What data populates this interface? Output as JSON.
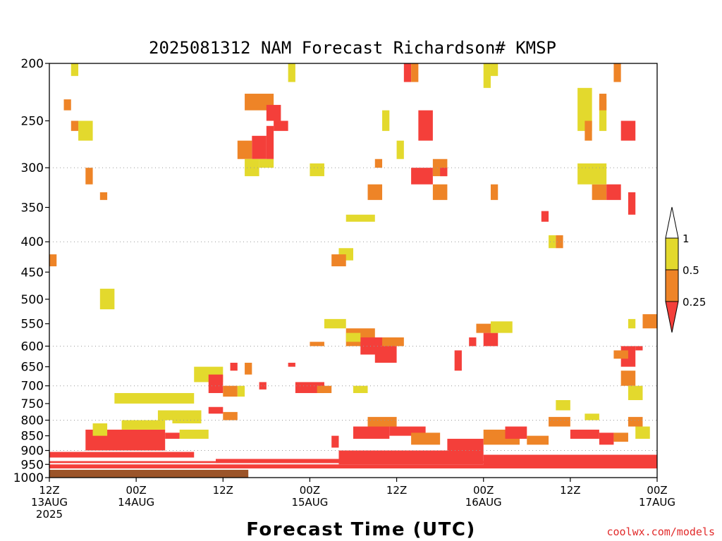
{
  "chart_data": {
    "type": "heatmap",
    "title": "2025081312 NAM Forecast Richardson# KMSP",
    "xlabel": "Forecast Time (UTC)",
    "ylabel": "",
    "y_scale": "log-pressure",
    "ylim": [
      1000,
      200
    ],
    "y_ticks": [
      200,
      250,
      300,
      350,
      400,
      450,
      500,
      550,
      600,
      650,
      700,
      750,
      800,
      850,
      900,
      950,
      1000
    ],
    "y_grid": [
      300,
      400,
      600,
      700,
      800,
      900,
      1000
    ],
    "xlim": [
      "2025-08-13T12:00Z",
      "2025-08-17T00:00Z"
    ],
    "x_ticks": [
      {
        "time": "2025-08-13T12:00Z",
        "lines": [
          "12Z",
          "13AUG",
          "2025"
        ]
      },
      {
        "time": "2025-08-14T00:00Z",
        "lines": [
          "00Z",
          "14AUG"
        ]
      },
      {
        "time": "2025-08-14T12:00Z",
        "lines": [
          "12Z"
        ]
      },
      {
        "time": "2025-08-15T00:00Z",
        "lines": [
          "00Z",
          "15AUG"
        ]
      },
      {
        "time": "2025-08-15T12:00Z",
        "lines": [
          "12Z"
        ]
      },
      {
        "time": "2025-08-16T00:00Z",
        "lines": [
          "00Z",
          "16AUG"
        ]
      },
      {
        "time": "2025-08-16T12:00Z",
        "lines": [
          "12Z"
        ]
      },
      {
        "time": "2025-08-17T00:00Z",
        "lines": [
          "00Z",
          "17AUG"
        ]
      }
    ],
    "legend": {
      "placement": "right",
      "levels": [
        {
          "label": "1",
          "color": "#ffffff"
        },
        {
          "label": "0.5",
          "color": "#e3d92d"
        },
        {
          "label": "0.25",
          "color": "#ee8427"
        },
        {
          "label": "",
          "color": "#f43f3a"
        }
      ]
    },
    "category_colors": {
      "lt025": "#f43f3a",
      "r025_05": "#ee8427",
      "r05_1": "#e3d92d",
      "ground": "#9b5429"
    },
    "patches": [
      {
        "t": [
          0,
          27.5
        ],
        "p": [
          1000,
          970
        ],
        "cat": "ground"
      },
      {
        "t": [
          0,
          84
        ],
        "p": [
          965,
          950
        ],
        "cat": "lt025"
      },
      {
        "t": [
          0,
          84
        ],
        "p": [
          945,
          938
        ],
        "cat": "lt025"
      },
      {
        "t": [
          23,
          40
        ],
        "p": [
          945,
          930
        ],
        "cat": "lt025"
      },
      {
        "t": [
          40,
          60
        ],
        "p": [
          950,
          900
        ],
        "cat": "lt025"
      },
      {
        "t": [
          60,
          84
        ],
        "p": [
          955,
          915
        ],
        "cat": "lt025"
      },
      {
        "t": [
          0,
          20
        ],
        "p": [
          925,
          905
        ],
        "cat": "lt025"
      },
      {
        "t": [
          5,
          16
        ],
        "p": [
          900,
          830
        ],
        "cat": "lt025"
      },
      {
        "t": [
          16,
          18
        ],
        "p": [
          860,
          840
        ],
        "cat": "lt025"
      },
      {
        "t": [
          10,
          16
        ],
        "p": [
          830,
          800
        ],
        "cat": "r05_1"
      },
      {
        "t": [
          18,
          22
        ],
        "p": [
          860,
          830
        ],
        "cat": "r05_1"
      },
      {
        "t": [
          9,
          20
        ],
        "p": [
          750,
          720
        ],
        "cat": "r05_1"
      },
      {
        "t": [
          15,
          20
        ],
        "p": [
          800,
          770
        ],
        "cat": "r05_1"
      },
      {
        "t": [
          20,
          24
        ],
        "p": [
          690,
          650
        ],
        "cat": "r05_1"
      },
      {
        "t": [
          22,
          24
        ],
        "p": [
          720,
          670
        ],
        "cat": "lt025"
      },
      {
        "t": [
          24,
          26
        ],
        "p": [
          730,
          700
        ],
        "cat": "r025_05"
      },
      {
        "t": [
          26,
          27
        ],
        "p": [
          730,
          700
        ],
        "cat": "r05_1"
      },
      {
        "t": [
          17,
          21
        ],
        "p": [
          810,
          770
        ],
        "cat": "r05_1"
      },
      {
        "t": [
          22,
          24
        ],
        "p": [
          780,
          760
        ],
        "cat": "lt025"
      },
      {
        "t": [
          24,
          26
        ],
        "p": [
          800,
          775
        ],
        "cat": "r025_05"
      },
      {
        "t": [
          27,
          28
        ],
        "p": [
          670,
          640
        ],
        "cat": "r025_05"
      },
      {
        "t": [
          25,
          26
        ],
        "p": [
          660,
          640
        ],
        "cat": "lt025"
      },
      {
        "t": [
          27,
          31
        ],
        "p": [
          240,
          225
        ],
        "cat": "r025_05"
      },
      {
        "t": [
          28,
          30
        ],
        "p": [
          290,
          265
        ],
        "cat": "lt025"
      },
      {
        "t": [
          26,
          28
        ],
        "p": [
          290,
          270
        ],
        "cat": "r025_05"
      },
      {
        "t": [
          27,
          29
        ],
        "p": [
          310,
          290
        ],
        "cat": "r05_1"
      },
      {
        "t": [
          29,
          31
        ],
        "p": [
          300,
          290
        ],
        "cat": "r05_1"
      },
      {
        "t": [
          30,
          31
        ],
        "p": [
          290,
          255
        ],
        "cat": "lt025"
      },
      {
        "t": [
          30,
          32
        ],
        "p": [
          250,
          235
        ],
        "cat": "lt025"
      },
      {
        "t": [
          31,
          33
        ],
        "p": [
          260,
          250
        ],
        "cat": "lt025"
      },
      {
        "t": [
          33,
          34
        ],
        "p": [
          215,
          200
        ],
        "cat": "r05_1"
      },
      {
        "t": [
          36,
          38
        ],
        "p": [
          310,
          295
        ],
        "cat": "r05_1"
      },
      {
        "t": [
          34,
          38
        ],
        "p": [
          720,
          690
        ],
        "cat": "lt025"
      },
      {
        "t": [
          37,
          39
        ],
        "p": [
          720,
          700
        ],
        "cat": "r025_05"
      },
      {
        "t": [
          36,
          38
        ],
        "p": [
          600,
          590
        ],
        "cat": "r025_05"
      },
      {
        "t": [
          38,
          41
        ],
        "p": [
          560,
          540
        ],
        "cat": "r05_1"
      },
      {
        "t": [
          41,
          45
        ],
        "p": [
          600,
          560
        ],
        "cat": "r025_05"
      },
      {
        "t": [
          43,
          46
        ],
        "p": [
          620,
          580
        ],
        "cat": "lt025"
      },
      {
        "t": [
          45,
          48
        ],
        "p": [
          640,
          580
        ],
        "cat": "lt025"
      },
      {
        "t": [
          46,
          49
        ],
        "p": [
          600,
          580
        ],
        "cat": "r025_05"
      },
      {
        "t": [
          42,
          47
        ],
        "p": [
          860,
          820
        ],
        "cat": "lt025"
      },
      {
        "t": [
          44,
          48
        ],
        "p": [
          820,
          790
        ],
        "cat": "r025_05"
      },
      {
        "t": [
          47,
          52
        ],
        "p": [
          850,
          820
        ],
        "cat": "lt025"
      },
      {
        "t": [
          50,
          54
        ],
        "p": [
          880,
          840
        ],
        "cat": "r025_05"
      },
      {
        "t": [
          49,
          50
        ],
        "p": [
          215,
          200
        ],
        "cat": "lt025"
      },
      {
        "t": [
          50,
          51
        ],
        "p": [
          215,
          200
        ],
        "cat": "r025_05"
      },
      {
        "t": [
          51,
          53
        ],
        "p": [
          270,
          240
        ],
        "cat": "lt025"
      },
      {
        "t": [
          50,
          53
        ],
        "p": [
          320,
          300
        ],
        "cat": "lt025"
      },
      {
        "t": [
          53,
          55
        ],
        "p": [
          310,
          290
        ],
        "cat": "r025_05"
      },
      {
        "t": [
          53,
          55
        ],
        "p": [
          340,
          320
        ],
        "cat": "r025_05"
      },
      {
        "t": [
          54,
          55
        ],
        "p": [
          310,
          300
        ],
        "cat": "lt025"
      },
      {
        "t": [
          56,
          57
        ],
        "p": [
          660,
          610
        ],
        "cat": "lt025"
      },
      {
        "t": [
          58,
          59
        ],
        "p": [
          600,
          580
        ],
        "cat": "lt025"
      },
      {
        "t": [
          59,
          61
        ],
        "p": [
          570,
          550
        ],
        "cat": "r025_05"
      },
      {
        "t": [
          60,
          62
        ],
        "p": [
          600,
          570
        ],
        "cat": "lt025"
      },
      {
        "t": [
          61,
          64
        ],
        "p": [
          570,
          545
        ],
        "cat": "r05_1"
      },
      {
        "t": [
          55,
          60
        ],
        "p": [
          900,
          860
        ],
        "cat": "lt025"
      },
      {
        "t": [
          60,
          65
        ],
        "p": [
          880,
          830
        ],
        "cat": "r025_05"
      },
      {
        "t": [
          63,
          66
        ],
        "p": [
          860,
          820
        ],
        "cat": "lt025"
      },
      {
        "t": [
          66,
          69
        ],
        "p": [
          880,
          850
        ],
        "cat": "r025_05"
      },
      {
        "t": [
          69,
          72
        ],
        "p": [
          820,
          790
        ],
        "cat": "r025_05"
      },
      {
        "t": [
          72,
          76
        ],
        "p": [
          860,
          830
        ],
        "cat": "lt025"
      },
      {
        "t": [
          70,
          72
        ],
        "p": [
          770,
          740
        ],
        "cat": "r05_1"
      },
      {
        "t": [
          74,
          76
        ],
        "p": [
          800,
          780
        ],
        "cat": "r05_1"
      },
      {
        "t": [
          76,
          78
        ],
        "p": [
          880,
          840
        ],
        "cat": "lt025"
      },
      {
        "t": [
          78,
          80
        ],
        "p": [
          870,
          840
        ],
        "cat": "r025_05"
      },
      {
        "t": [
          80,
          82
        ],
        "p": [
          820,
          790
        ],
        "cat": "r025_05"
      },
      {
        "t": [
          81,
          83
        ],
        "p": [
          860,
          820
        ],
        "cat": "r05_1"
      },
      {
        "t": [
          79,
          81
        ],
        "p": [
          650,
          600
        ],
        "cat": "lt025"
      },
      {
        "t": [
          79,
          81
        ],
        "p": [
          700,
          660
        ],
        "cat": "r025_05"
      },
      {
        "t": [
          80,
          82
        ],
        "p": [
          740,
          700
        ],
        "cat": "r05_1"
      },
      {
        "t": [
          82,
          84
        ],
        "p": [
          560,
          530
        ],
        "cat": "r025_05"
      },
      {
        "t": [
          80,
          81
        ],
        "p": [
          560,
          540
        ],
        "cat": "r05_1"
      },
      {
        "t": [
          81,
          82
        ],
        "p": [
          610,
          600
        ],
        "cat": "lt025"
      },
      {
        "t": [
          78,
          80
        ],
        "p": [
          630,
          610
        ],
        "cat": "r025_05"
      },
      {
        "t": [
          79,
          81
        ],
        "p": [
          270,
          250
        ],
        "cat": "lt025"
      },
      {
        "t": [
          80,
          81
        ],
        "p": [
          360,
          330
        ],
        "cat": "lt025"
      },
      {
        "t": [
          75,
          77
        ],
        "p": [
          340,
          320
        ],
        "cat": "r025_05"
      },
      {
        "t": [
          77,
          79
        ],
        "p": [
          340,
          320
        ],
        "cat": "lt025"
      },
      {
        "t": [
          73,
          77
        ],
        "p": [
          320,
          295
        ],
        "cat": "r05_1"
      },
      {
        "t": [
          73,
          75
        ],
        "p": [
          260,
          220
        ],
        "cat": "r05_1"
      },
      {
        "t": [
          74,
          75
        ],
        "p": [
          270,
          250
        ],
        "cat": "r025_05"
      },
      {
        "t": [
          76,
          77
        ],
        "p": [
          260,
          230
        ],
        "cat": "r05_1"
      },
      {
        "t": [
          76,
          77
        ],
        "p": [
          240,
          225
        ],
        "cat": "r025_05"
      },
      {
        "t": [
          78,
          79
        ],
        "p": [
          215,
          200
        ],
        "cat": "r025_05"
      },
      {
        "t": [
          68,
          69
        ],
        "p": [
          370,
          355
        ],
        "cat": "lt025"
      },
      {
        "t": [
          69,
          70
        ],
        "p": [
          410,
          390
        ],
        "cat": "r05_1"
      },
      {
        "t": [
          70,
          71
        ],
        "p": [
          410,
          390
        ],
        "cat": "r025_05"
      },
      {
        "t": [
          61,
          62
        ],
        "p": [
          210,
          200
        ],
        "cat": "r05_1"
      },
      {
        "t": [
          60,
          61
        ],
        "p": [
          220,
          200
        ],
        "cat": "r05_1"
      },
      {
        "t": [
          61,
          62
        ],
        "p": [
          340,
          320
        ],
        "cat": "r025_05"
      },
      {
        "t": [
          3,
          4
        ],
        "p": [
          210,
          200
        ],
        "cat": "r05_1"
      },
      {
        "t": [
          2,
          3
        ],
        "p": [
          240,
          230
        ],
        "cat": "r025_05"
      },
      {
        "t": [
          4,
          6
        ],
        "p": [
          270,
          250
        ],
        "cat": "r05_1"
      },
      {
        "t": [
          3,
          4
        ],
        "p": [
          260,
          250
        ],
        "cat": "r025_05"
      },
      {
        "t": [
          5,
          6
        ],
        "p": [
          320,
          300
        ],
        "cat": "r025_05"
      },
      {
        "t": [
          7,
          8
        ],
        "p": [
          340,
          330
        ],
        "cat": "r025_05"
      },
      {
        "t": [
          7,
          9
        ],
        "p": [
          520,
          480
        ],
        "cat": "r05_1"
      },
      {
        "t": [
          0,
          1
        ],
        "p": [
          440,
          420
        ],
        "cat": "r025_05"
      },
      {
        "t": [
          6,
          8
        ],
        "p": [
          850,
          810
        ],
        "cat": "r05_1"
      },
      {
        "t": [
          29,
          30
        ],
        "p": [
          710,
          690
        ],
        "cat": "lt025"
      },
      {
        "t": [
          33,
          34
        ],
        "p": [
          650,
          640
        ],
        "cat": "lt025"
      },
      {
        "t": [
          44,
          46
        ],
        "p": [
          340,
          320
        ],
        "cat": "r025_05"
      },
      {
        "t": [
          45,
          46
        ],
        "p": [
          300,
          290
        ],
        "cat": "r025_05"
      },
      {
        "t": [
          41,
          45
        ],
        "p": [
          370,
          360
        ],
        "cat": "r05_1"
      },
      {
        "t": [
          46,
          47
        ],
        "p": [
          260,
          240
        ],
        "cat": "r05_1"
      },
      {
        "t": [
          48,
          49
        ],
        "p": [
          290,
          270
        ],
        "cat": "r05_1"
      },
      {
        "t": [
          40,
          42
        ],
        "p": [
          430,
          410
        ],
        "cat": "r05_1"
      },
      {
        "t": [
          39,
          41
        ],
        "p": [
          440,
          420
        ],
        "cat": "r025_05"
      },
      {
        "t": [
          41,
          43
        ],
        "p": [
          590,
          570
        ],
        "cat": "r05_1"
      },
      {
        "t": [
          42,
          44
        ],
        "p": [
          720,
          700
        ],
        "cat": "r05_1"
      },
      {
        "t": [
          39,
          40
        ],
        "p": [
          890,
          850
        ],
        "cat": "lt025"
      }
    ]
  },
  "credit": "coolwx.com/models"
}
